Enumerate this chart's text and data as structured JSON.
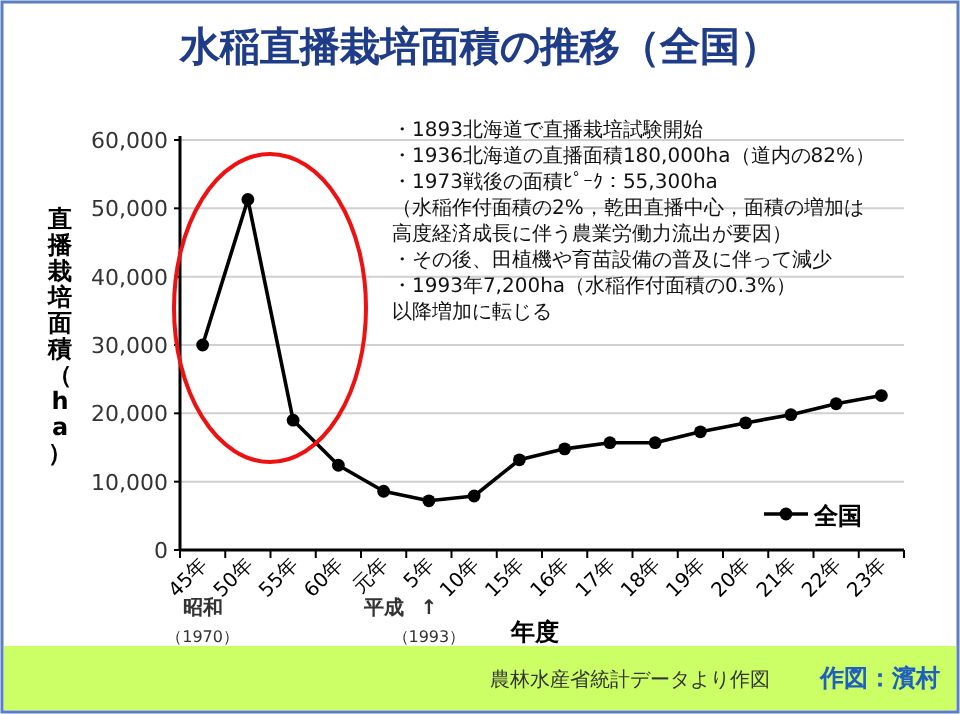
{
  "chart_data": {
    "type": "line",
    "title": "水稲直播栽培面積の推移（全国）",
    "xlabel": "年度",
    "ylabel": "直播栽培面積（ha）",
    "categories": [
      "45年",
      "50年",
      "55年",
      "60年",
      "元年",
      "5年",
      "10年",
      "15年",
      "16年",
      "17年",
      "18年",
      "19年",
      "20年",
      "21年",
      "22年",
      "23年"
    ],
    "series": [
      {
        "name": "全国",
        "color": "#000000",
        "values": [
          30000,
          51300,
          19000,
          12400,
          8600,
          7200,
          7900,
          13200,
          14800,
          15700,
          15700,
          17300,
          18600,
          19800,
          21400,
          22600
        ]
      }
    ],
    "ylim": [
      0,
      60000
    ],
    "yticks": [
      {
        "value": 0,
        "label": "0"
      },
      {
        "value": 10000,
        "label": "10,000"
      },
      {
        "value": 20000,
        "label": "20,000"
      },
      {
        "value": 30000,
        "label": "30,000"
      },
      {
        "value": 40000,
        "label": "40,000"
      },
      {
        "value": 50000,
        "label": "50,000"
      },
      {
        "value": 60000,
        "label": "60,000"
      }
    ],
    "grid": "y",
    "legend": "bottom right",
    "marker": "circle",
    "line_style": "solid",
    "annotations": [
      "・1893北海道で直播栽培試験開始",
      "・1936北海道の直播面積180,000ha（道内の82%）",
      "・1973戦後の面積ﾋﾟｰｸ：55,300ha",
      "（水稲作付面積の2%，乾田直播中心，面積の増加は",
      "高度経済成長に伴う農業労働力流出が要因）",
      "・その後、田植機や育苗設備の普及に伴って減少",
      "・1993年7,200ha（水稲作付面積の0.3%）",
      "以降増加に転じる",
      "昭和",
      "（1970）",
      "平成",
      "↑",
      "（1993）",
      "農林水産省統計データより作図",
      "作図：濱村"
    ]
  }
}
